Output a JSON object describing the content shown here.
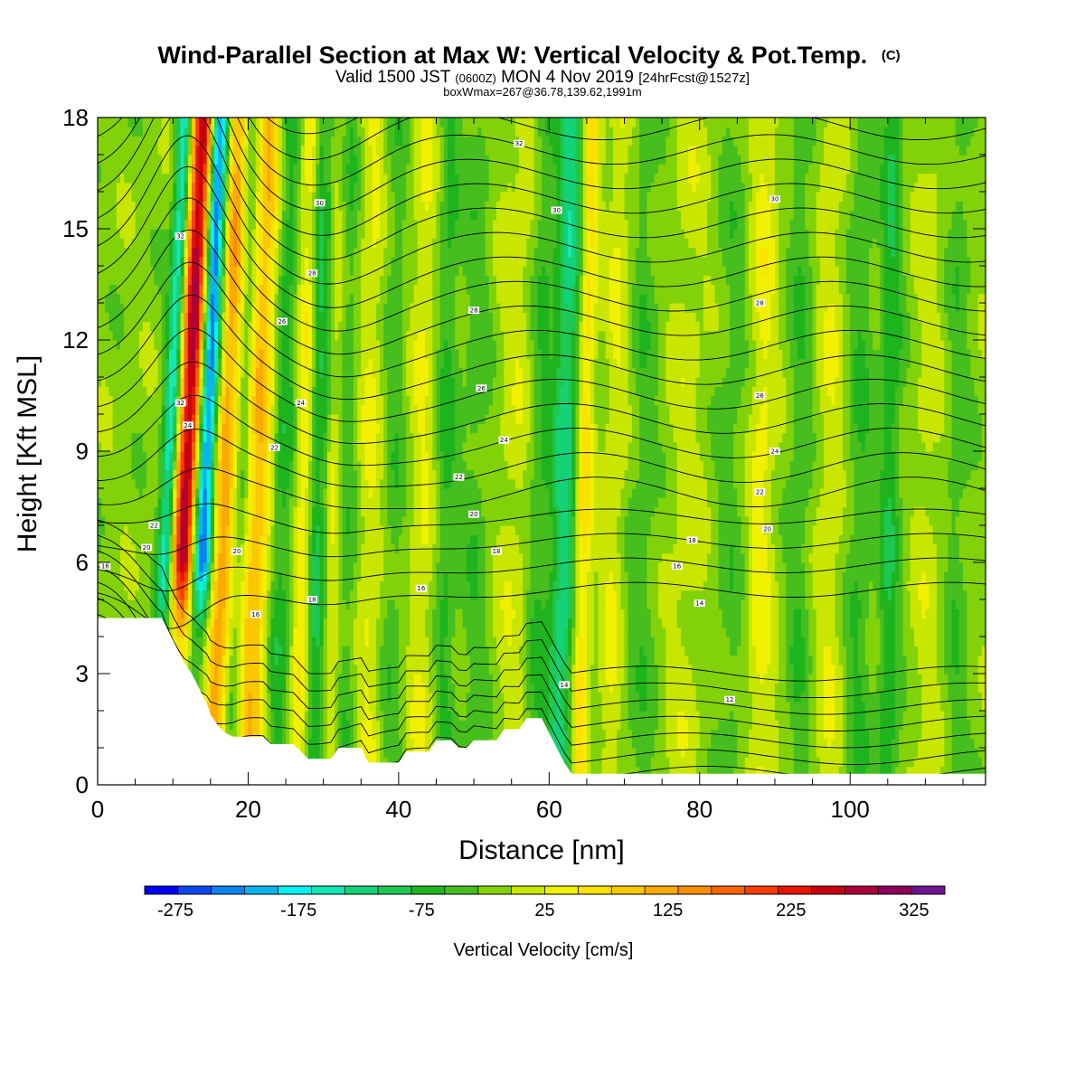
{
  "chart_data": {
    "type": "heatmap",
    "title": "Wind-Parallel Section at Max W: Vertical Velocity & Pot.Temp.",
    "title_mark": "(C)",
    "subtitle_parts": [
      "Valid 1500 JST ",
      "(0600Z)",
      " MON 4 Nov 2019 ",
      "[24hrFcst@1527z]"
    ],
    "subtitle2": "boxWmax=267@36.78,139.62,1991m",
    "xlabel": "Distance [nm]",
    "ylabel": "Height [Kft MSL]",
    "xlim": [
      0,
      118
    ],
    "ylim": [
      0,
      18
    ],
    "x_ticks": [
      0,
      20,
      40,
      60,
      80,
      100
    ],
    "y_ticks": [
      0,
      3,
      6,
      9,
      12,
      15,
      18
    ],
    "colorbar": {
      "label": "Vertical Velocity [cm/s]",
      "range": [
        -300,
        350
      ],
      "tick_values": [
        -275,
        -175,
        -75,
        25,
        125,
        225,
        325
      ],
      "tick_labels": [
        "-275",
        "-175",
        "-75",
        "25",
        "125",
        "225",
        "325"
      ],
      "colors": [
        "#0000f0",
        "#0a46f0",
        "#0a82f0",
        "#0ab4f0",
        "#0af0f0",
        "#14e6b4",
        "#14d278",
        "#1ec850",
        "#1eb41e",
        "#46be1e",
        "#82d20a",
        "#c8e600",
        "#f0f000",
        "#fae100",
        "#fac800",
        "#faaa00",
        "#fa8c00",
        "#fa6400",
        "#fa3c00",
        "#e61400",
        "#c80014",
        "#aa003c",
        "#8c005a",
        "#6e1490"
      ]
    },
    "terrain_kft": [
      [
        0,
        4.5
      ],
      [
        8.5,
        4.5
      ],
      [
        9.5,
        4.1
      ],
      [
        10.5,
        3.7
      ],
      [
        11.5,
        3.3
      ],
      [
        12.5,
        3.0
      ],
      [
        13.5,
        2.6
      ],
      [
        14.5,
        2.2
      ],
      [
        15,
        1.9
      ],
      [
        16,
        1.6
      ],
      [
        17,
        1.4
      ],
      [
        18,
        1.3
      ],
      [
        22,
        1.3
      ],
      [
        23,
        1.1
      ],
      [
        26,
        1.1
      ],
      [
        28,
        0.7
      ],
      [
        31,
        0.7
      ],
      [
        32,
        1.0
      ],
      [
        35,
        1.0
      ],
      [
        36,
        0.6
      ],
      [
        40,
        0.6
      ],
      [
        41,
        0.9
      ],
      [
        44,
        0.9
      ],
      [
        45,
        1.2
      ],
      [
        47,
        1.2
      ],
      [
        48,
        1.0
      ],
      [
        49,
        1.0
      ],
      [
        50,
        1.2
      ],
      [
        53,
        1.2
      ],
      [
        54,
        1.5
      ],
      [
        56,
        1.5
      ],
      [
        57,
        1.8
      ],
      [
        59,
        1.8
      ],
      [
        60,
        1.4
      ],
      [
        61,
        1.0
      ],
      [
        62,
        0.6
      ],
      [
        63,
        0.3
      ],
      [
        118,
        0.3
      ]
    ],
    "w_features": [
      {
        "x": 8.5,
        "w": -160,
        "width": 1.0
      },
      {
        "x": 11,
        "w": 300,
        "width": 1.6
      },
      {
        "x": 13.3,
        "w": -250,
        "width": 1.4
      },
      {
        "x": 16,
        "w": 140,
        "width": 1.6
      },
      {
        "x": 18.5,
        "w": -55,
        "width": 1.2
      },
      {
        "x": 20.5,
        "w": 120,
        "width": 2.0
      },
      {
        "x": 24,
        "w": -60,
        "width": 1.5
      },
      {
        "x": 27,
        "w": 60,
        "width": 1.3
      },
      {
        "x": 29,
        "w": -80,
        "width": 1.2
      },
      {
        "x": 31,
        "w": 50,
        "width": 1.2
      },
      {
        "x": 33,
        "w": -40,
        "width": 1.5
      },
      {
        "x": 36,
        "w": 45,
        "width": 2.0
      },
      {
        "x": 39,
        "w": -35,
        "width": 1.8
      },
      {
        "x": 43,
        "w": 40,
        "width": 2.0
      },
      {
        "x": 46,
        "w": -50,
        "width": 1.5
      },
      {
        "x": 50,
        "w": -30,
        "width": 1.8
      },
      {
        "x": 55,
        "w": 30,
        "width": 2.2
      },
      {
        "x": 58,
        "w": -40,
        "width": 1.5
      },
      {
        "x": 61.5,
        "w": -110,
        "width": 1.8
      },
      {
        "x": 64,
        "w": 90,
        "width": 1.2
      },
      {
        "x": 68,
        "w": 40,
        "width": 1.5
      },
      {
        "x": 72,
        "w": -30,
        "width": 2.0
      },
      {
        "x": 78,
        "w": 25,
        "width": 2.5
      },
      {
        "x": 84,
        "w": -25,
        "width": 2.0
      },
      {
        "x": 88,
        "w": 50,
        "width": 1.8
      },
      {
        "x": 93,
        "w": -35,
        "width": 1.6
      },
      {
        "x": 97,
        "w": 35,
        "width": 1.8
      },
      {
        "x": 101,
        "w": -40,
        "width": 1.6
      },
      {
        "x": 105,
        "w": -65,
        "width": 1.4
      },
      {
        "x": 110,
        "w": 25,
        "width": 2.0
      },
      {
        "x": 114,
        "w": -30,
        "width": 1.6
      }
    ],
    "theta_contours_c": [
      2,
      4,
      6,
      8,
      10,
      11,
      12,
      13,
      14,
      15,
      16,
      17,
      18,
      19,
      20,
      21,
      22,
      23,
      24,
      25,
      26,
      27,
      28,
      29,
      30,
      31,
      32,
      33,
      34,
      35,
      36,
      37,
      38,
      39,
      40,
      41,
      42,
      43,
      44
    ],
    "contour_labels": [
      {
        "text": "16",
        "x": 1,
        "y": 5.9
      },
      {
        "text": "20",
        "x": 6.5,
        "y": 6.4
      },
      {
        "text": "22",
        "x": 7.5,
        "y": 7.0
      },
      {
        "text": "16",
        "x": 21,
        "y": 4.6
      },
      {
        "text": "20",
        "x": 18.5,
        "y": 6.3
      },
      {
        "text": "22",
        "x": 23.5,
        "y": 9.1
      },
      {
        "text": "24",
        "x": 27,
        "y": 10.3
      },
      {
        "text": "26",
        "x": 24.5,
        "y": 12.5
      },
      {
        "text": "28",
        "x": 28.5,
        "y": 13.8
      },
      {
        "text": "30",
        "x": 29.5,
        "y": 15.7
      },
      {
        "text": "32",
        "x": 11,
        "y": 14.8
      },
      {
        "text": "32",
        "x": 11,
        "y": 10.3
      },
      {
        "text": "24",
        "x": 12,
        "y": 9.7
      },
      {
        "text": "18",
        "x": 28.5,
        "y": 5.0
      },
      {
        "text": "16",
        "x": 43,
        "y": 5.3
      },
      {
        "text": "18",
        "x": 53,
        "y": 6.3
      },
      {
        "text": "20",
        "x": 50,
        "y": 7.3
      },
      {
        "text": "22",
        "x": 48,
        "y": 8.3
      },
      {
        "text": "24",
        "x": 54,
        "y": 9.3
      },
      {
        "text": "26",
        "x": 51,
        "y": 10.7
      },
      {
        "text": "28",
        "x": 50,
        "y": 12.8
      },
      {
        "text": "30",
        "x": 61,
        "y": 15.5
      },
      {
        "text": "32",
        "x": 56,
        "y": 17.3
      },
      {
        "text": "14",
        "x": 62,
        "y": 2.7
      },
      {
        "text": "12",
        "x": 84,
        "y": 2.3
      },
      {
        "text": "14",
        "x": 80,
        "y": 4.9
      },
      {
        "text": "16",
        "x": 77,
        "y": 5.9
      },
      {
        "text": "18",
        "x": 79,
        "y": 6.6
      },
      {
        "text": "20",
        "x": 89,
        "y": 6.9
      },
      {
        "text": "22",
        "x": 88,
        "y": 7.9
      },
      {
        "text": "24",
        "x": 90,
        "y": 9.0
      },
      {
        "text": "26",
        "x": 88,
        "y": 10.5
      },
      {
        "text": "28",
        "x": 88,
        "y": 13.0
      },
      {
        "text": "30",
        "x": 90,
        "y": 15.8
      }
    ]
  }
}
